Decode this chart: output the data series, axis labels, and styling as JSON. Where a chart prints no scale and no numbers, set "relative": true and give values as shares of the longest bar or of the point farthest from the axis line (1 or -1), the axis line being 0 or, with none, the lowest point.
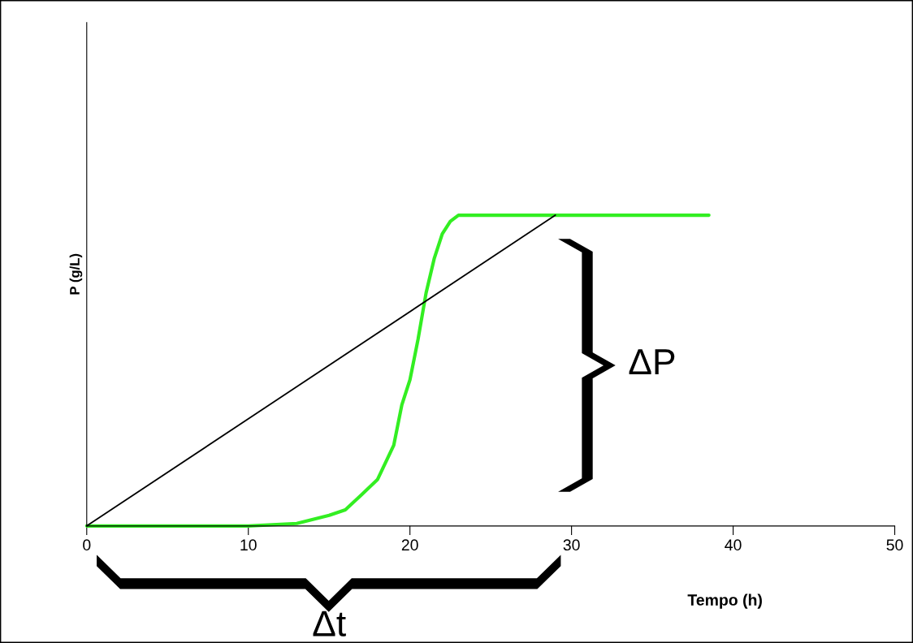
{
  "chart_data": {
    "type": "line",
    "xlabel": "Tempo (h)",
    "ylabel": "P (g/L)",
    "relative": true,
    "xlim": [
      0,
      50
    ],
    "xticks": [
      0,
      10,
      20,
      30,
      40,
      50
    ],
    "tick_labels": "x",
    "grid": false,
    "marker": "none",
    "line_style": "solid",
    "series": [
      {
        "color": "#33ee22",
        "x": [
          0,
          10,
          13,
          15,
          16,
          17,
          18,
          19,
          19.5,
          20,
          20.5,
          21,
          21.5,
          22,
          22.5,
          23,
          38.5
        ],
        "values": [
          0,
          0,
          0.008,
          0.034,
          0.052,
          0.1,
          0.15,
          0.26,
          0.39,
          0.47,
          0.6,
          0.75,
          0.86,
          0.94,
          0.98,
          1,
          1
        ]
      },
      {
        "color": "#000000",
        "x": [
          0,
          29
        ],
        "values": [
          0,
          1
        ]
      }
    ],
    "annotations": [
      "ΔP",
      "Δt"
    ]
  }
}
